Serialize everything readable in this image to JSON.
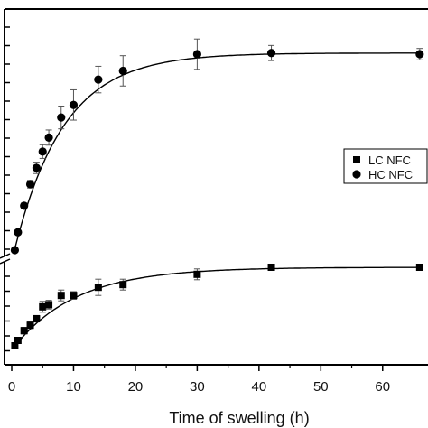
{
  "chart_data": {
    "type": "scatter",
    "xlabel": "Time of swelling (h)",
    "ylabel": "",
    "xlim": [
      -1,
      66
    ],
    "xticks": [
      0,
      10,
      20,
      30,
      40,
      50,
      60
    ],
    "x_tick_labels": [
      "0",
      "10",
      "20",
      "30",
      "40",
      "50",
      "60"
    ],
    "y_axis_break": true,
    "grid": false,
    "legend_position": "right",
    "series": [
      {
        "name": "LC NFC",
        "marker": "square",
        "color": "#000000",
        "points": [
          {
            "x": 0.5,
            "y": 0.0,
            "err": 0.05
          },
          {
            "x": 1.0,
            "y": 0.1,
            "err": 0.05
          },
          {
            "x": 2.0,
            "y": 0.28,
            "err": 0.06
          },
          {
            "x": 3.0,
            "y": 0.38,
            "err": 0.06
          },
          {
            "x": 4.0,
            "y": 0.5,
            "err": 0.06
          },
          {
            "x": 5.0,
            "y": 0.72,
            "err": 0.1
          },
          {
            "x": 6.0,
            "y": 0.76,
            "err": 0.08
          },
          {
            "x": 8.0,
            "y": 0.93,
            "err": 0.1
          },
          {
            "x": 10.0,
            "y": 0.93,
            "err": 0.07
          },
          {
            "x": 14.0,
            "y": 1.08,
            "err": 0.15
          },
          {
            "x": 18.0,
            "y": 1.13,
            "err": 0.1
          },
          {
            "x": 30.0,
            "y": 1.32,
            "err": 0.1
          },
          {
            "x": 42.0,
            "y": 1.45,
            "err": 0.05
          },
          {
            "x": 66.0,
            "y": 1.45,
            "err": 0.05
          }
        ],
        "fit": {
          "y0": -0.08,
          "a": 1.53,
          "k": 0.098
        }
      },
      {
        "name": "HC NFC",
        "marker": "circle",
        "color": "#000000",
        "points": [
          {
            "x": 0.5,
            "y": 4.5,
            "err": 0.0
          },
          {
            "x": 1.0,
            "y": 4.97,
            "err": 0.05
          },
          {
            "x": 2.0,
            "y": 5.67,
            "err": 0.07
          },
          {
            "x": 3.0,
            "y": 6.24,
            "err": 0.1
          },
          {
            "x": 4.0,
            "y": 6.67,
            "err": 0.15
          },
          {
            "x": 5.0,
            "y": 7.1,
            "err": 0.18
          },
          {
            "x": 6.0,
            "y": 7.47,
            "err": 0.2
          },
          {
            "x": 8.0,
            "y": 8.0,
            "err": 0.3
          },
          {
            "x": 10.0,
            "y": 8.33,
            "err": 0.4
          },
          {
            "x": 14.0,
            "y": 9.0,
            "err": 0.35
          },
          {
            "x": 18.0,
            "y": 9.23,
            "err": 0.4
          },
          {
            "x": 30.0,
            "y": 9.67,
            "err": 0.4
          },
          {
            "x": 42.0,
            "y": 9.7,
            "err": 0.2
          },
          {
            "x": 66.0,
            "y": 9.67,
            "err": 0.15
          }
        ],
        "fit": {
          "y0": 4.2,
          "a": 5.5,
          "k": 0.125
        }
      }
    ]
  }
}
